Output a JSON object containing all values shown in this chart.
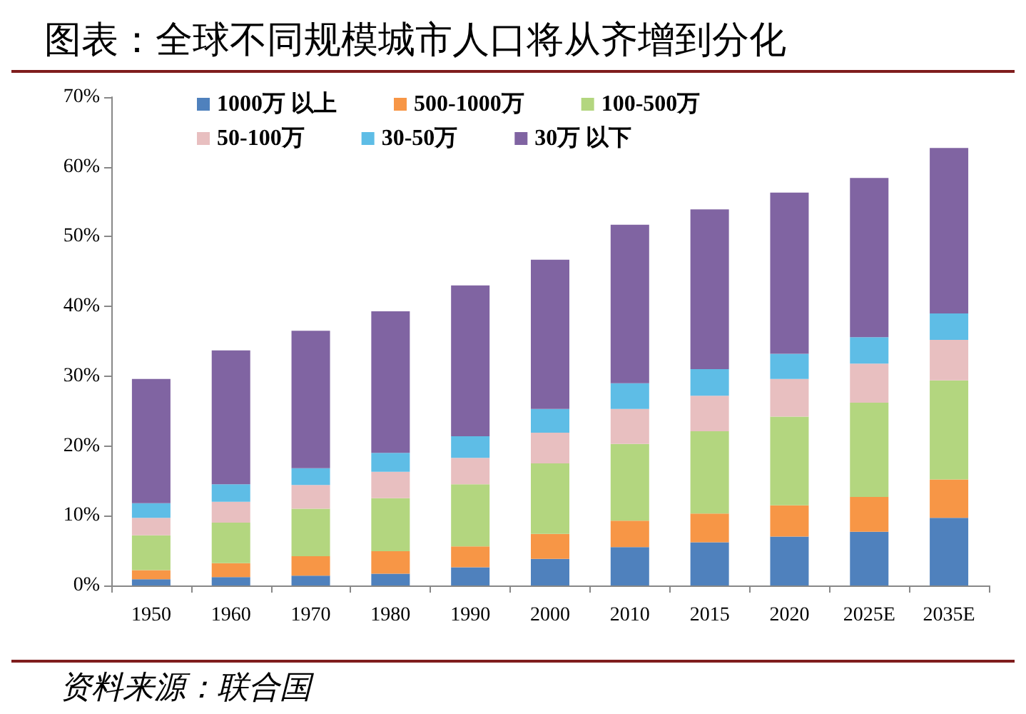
{
  "chart_data": {
    "type": "bar",
    "stacked": true,
    "title": "图表：全球不同规模城市人口将从齐增到分化",
    "annotations": [
      "资料来源：联合国"
    ],
    "categories": [
      "1950",
      "1960",
      "1970",
      "1980",
      "1990",
      "2000",
      "2010",
      "2015",
      "2020",
      "2025E",
      "2035E"
    ],
    "series": [
      {
        "name": "1000万 以上",
        "color": "#4f81bd",
        "values": [
          0.9,
          1.2,
          1.4,
          1.7,
          2.6,
          3.8,
          5.5,
          6.2,
          7.0,
          7.7,
          9.7
        ]
      },
      {
        "name": "500-1000万",
        "color": "#f79646",
        "values": [
          1.3,
          2.0,
          2.8,
          3.2,
          3.0,
          3.6,
          3.8,
          4.1,
          4.5,
          5.0,
          5.5
        ]
      },
      {
        "name": "100-500万",
        "color": "#b3d67f",
        "values": [
          5.0,
          5.8,
          6.8,
          7.6,
          8.9,
          10.1,
          11.0,
          11.8,
          12.7,
          13.5,
          14.2
        ]
      },
      {
        "name": "50-100万",
        "color": "#e8bfc0",
        "values": [
          2.5,
          3.0,
          3.4,
          3.8,
          3.8,
          4.4,
          5.0,
          5.1,
          5.4,
          5.6,
          5.8
        ]
      },
      {
        "name": "30-50万",
        "color": "#5ebde6",
        "values": [
          2.1,
          2.5,
          2.4,
          2.7,
          3.1,
          3.4,
          3.7,
          3.8,
          3.6,
          3.8,
          3.8
        ]
      },
      {
        "name": "30万 以下",
        "color": "#8064a2",
        "values": [
          17.8,
          19.2,
          19.7,
          20.3,
          21.6,
          21.4,
          22.7,
          22.9,
          23.1,
          22.8,
          23.7
        ]
      }
    ],
    "ylim": [
      0,
      70
    ],
    "yticks": [
      {
        "value": 0,
        "label": "0%"
      },
      {
        "value": 10,
        "label": "10%"
      },
      {
        "value": 20,
        "label": "20%"
      },
      {
        "value": 30,
        "label": "30%"
      },
      {
        "value": 40,
        "label": "40%"
      },
      {
        "value": 50,
        "label": "50%"
      },
      {
        "value": 60,
        "label": "60%"
      },
      {
        "value": 70,
        "label": "70%"
      }
    ],
    "grid": false,
    "legend": "top"
  }
}
